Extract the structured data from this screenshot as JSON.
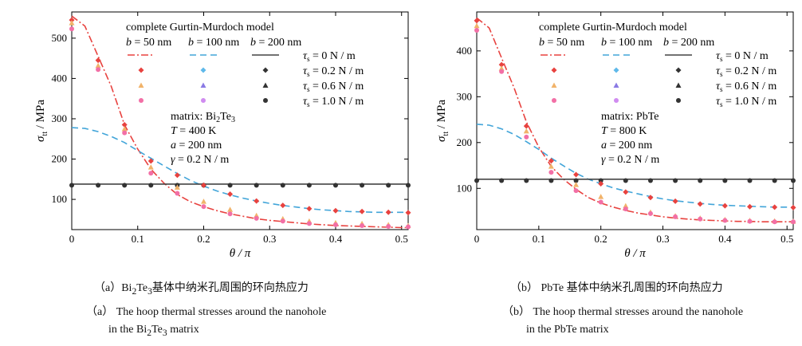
{
  "chart_data": [
    {
      "type": "line",
      "panel": "a",
      "model_title": "complete Gurtin-Murdoch model",
      "xlabel": "θ / π",
      "ylabel_symbol": "σ",
      "ylabel_subscript": "tt",
      "ylabel_unit": " / MPa",
      "xlim": [
        0,
        0.51
      ],
      "ylim": [
        25,
        565
      ],
      "xticks": [
        0,
        0.1,
        0.2,
        0.3,
        0.4,
        0.5
      ],
      "xtick_labels": [
        "0",
        "0.1",
        "0.2",
        "0.3",
        "0.4",
        "0.5"
      ],
      "yticks": [
        100,
        200,
        300,
        400,
        500
      ],
      "ytick_labels": [
        "100",
        "200",
        "300",
        "400",
        "500"
      ],
      "info": [
        "matrix: Bi₂Te₃",
        "T = 400 K",
        "a = 200 nm",
        "γ = 0.2 N / m"
      ],
      "legend_line_labels": [
        "b = 50 nm",
        "b = 100 nm",
        "b = 200 nm"
      ],
      "legend_marker_labels": [
        "τs = 0 N / m",
        "τs = 0.2 N / m",
        "τs = 0.6 N / m",
        "τs = 1.0 N / m"
      ],
      "x_markers": [
        0,
        0.04,
        0.08,
        0.12,
        0.16,
        0.2,
        0.24,
        0.28,
        0.32,
        0.36,
        0.4,
        0.44,
        0.48,
        0.51
      ],
      "lines": [
        {
          "x": [
            0,
            0.02,
            0.04,
            0.06,
            0.08,
            0.1,
            0.12,
            0.14,
            0.16,
            0.18,
            0.2,
            0.22,
            0.24,
            0.26,
            0.28,
            0.3,
            0.32,
            0.34,
            0.36,
            0.38,
            0.4,
            0.42,
            0.44,
            0.46,
            0.48,
            0.5,
            0.51
          ],
          "y": [
            555,
            530,
            455,
            380,
            285,
            225,
            175,
            140,
            112,
            94,
            82,
            72,
            64,
            58,
            52,
            48,
            45,
            42,
            39,
            37,
            35,
            34,
            33,
            32,
            31,
            30,
            30
          ]
        },
        {
          "x": [
            0,
            0.02,
            0.04,
            0.06,
            0.08,
            0.1,
            0.12,
            0.14,
            0.16,
            0.18,
            0.2,
            0.22,
            0.24,
            0.26,
            0.28,
            0.3,
            0.32,
            0.34,
            0.36,
            0.38,
            0.4,
            0.42,
            0.44,
            0.46,
            0.48,
            0.5,
            0.51
          ],
          "y": [
            278,
            276,
            268,
            256,
            241,
            221,
            202,
            183,
            164,
            147,
            133,
            121,
            111,
            103,
            96,
            90,
            85,
            81,
            77,
            74,
            72,
            70,
            69,
            68,
            68,
            68,
            68
          ]
        },
        {
          "x": [
            0,
            0.51
          ],
          "y": [
            138,
            138
          ]
        }
      ],
      "marker_series": [
        {
          "y": [
            135,
            135,
            135,
            135,
            135,
            135,
            135,
            135,
            135,
            135,
            135,
            135,
            135,
            135
          ]
        },
        {
          "y": [
            545,
            445,
            285,
            195,
            160,
            135,
            113,
            96,
            85,
            77,
            72,
            70,
            68,
            67
          ]
        },
        {
          "y": [
            538,
            432,
            275,
            180,
            130,
            95,
            75,
            60,
            52,
            46,
            42,
            40,
            37,
            35
          ]
        },
        {
          "y": [
            523,
            422,
            265,
            165,
            115,
            82,
            64,
            53,
            46,
            40,
            37,
            35,
            33,
            32
          ]
        }
      ],
      "colors": {
        "b50": "#e8423f",
        "b100": "#42a5d9",
        "b200": "#444444",
        "tau0": "#333333",
        "tau02": "#5fb9ea",
        "tau06": "#8a7ae4",
        "tau10": "#d08cf0",
        "red_dark": "#e8423f",
        "orange": "#f1b36a",
        "pink": "#f26fa6"
      }
    },
    {
      "type": "line",
      "panel": "b",
      "model_title": "complete Gurtin-Murdoch model",
      "xlabel": "θ / π",
      "ylabel_symbol": "σ",
      "ylabel_subscript": "tt",
      "ylabel_unit": " / MPa",
      "xlim": [
        0,
        0.51
      ],
      "ylim": [
        10,
        485
      ],
      "xticks": [
        0,
        0.1,
        0.2,
        0.3,
        0.4,
        0.5
      ],
      "xtick_labels": [
        "0",
        "0.1",
        "0.2",
        "0.3",
        "0.4",
        "0.5"
      ],
      "yticks": [
        100,
        200,
        300,
        400
      ],
      "ytick_labels": [
        "100",
        "200",
        "300",
        "400"
      ],
      "info": [
        "matrix: PbTe",
        "T = 800 K",
        "a = 200 nm",
        "γ = 0.2 N / m"
      ],
      "legend_line_labels": [
        "b = 50 nm",
        "b = 100 nm",
        "b = 200 nm"
      ],
      "legend_marker_labels": [
        "τs = 0 N / m",
        "τs = 0.2 N / m",
        "τs = 0.6 N / m",
        "τs = 1.0 N / m"
      ],
      "x_markers": [
        0,
        0.04,
        0.08,
        0.12,
        0.16,
        0.2,
        0.24,
        0.28,
        0.32,
        0.36,
        0.4,
        0.44,
        0.48,
        0.51
      ],
      "lines": [
        {
          "x": [
            0,
            0.02,
            0.04,
            0.06,
            0.08,
            0.1,
            0.12,
            0.14,
            0.16,
            0.18,
            0.2,
            0.22,
            0.24,
            0.26,
            0.28,
            0.3,
            0.32,
            0.34,
            0.36,
            0.38,
            0.4,
            0.42,
            0.44,
            0.46,
            0.48,
            0.5,
            0.51
          ],
          "y": [
            472,
            450,
            385,
            320,
            245,
            190,
            148,
            120,
            98,
            80,
            68,
            59,
            52,
            46,
            42,
            38,
            35,
            33,
            31,
            30,
            29,
            28,
            28,
            27,
            27,
            27,
            27
          ]
        },
        {
          "x": [
            0,
            0.02,
            0.04,
            0.06,
            0.08,
            0.1,
            0.12,
            0.14,
            0.16,
            0.18,
            0.2,
            0.22,
            0.24,
            0.26,
            0.28,
            0.3,
            0.32,
            0.34,
            0.36,
            0.38,
            0.4,
            0.42,
            0.44,
            0.46,
            0.48,
            0.5,
            0.51
          ],
          "y": [
            240,
            238,
            230,
            218,
            202,
            185,
            166,
            149,
            133,
            120,
            110,
            101,
            94,
            88,
            82,
            77,
            73,
            70,
            67,
            65,
            63,
            62,
            61,
            60,
            59,
            59,
            59
          ]
        },
        {
          "x": [
            0,
            0.51
          ],
          "y": [
            120,
            120
          ]
        }
      ],
      "marker_series": [
        {
          "y": [
            117,
            117,
            117,
            117,
            117,
            117,
            117,
            117,
            117,
            117,
            117,
            117,
            117,
            117
          ]
        },
        {
          "y": [
            466,
            370,
            236,
            160,
            130,
            110,
            92,
            80,
            72,
            66,
            62,
            60,
            59,
            58
          ]
        },
        {
          "y": [
            455,
            362,
            225,
            148,
            108,
            82,
            62,
            48,
            40,
            35,
            32,
            30,
            29,
            28
          ]
        },
        {
          "y": [
            445,
            355,
            212,
            135,
            95,
            70,
            55,
            45,
            38,
            33,
            30,
            28,
            27,
            27
          ]
        }
      ],
      "colors": {
        "b50": "#e8423f",
        "b100": "#42a5d9",
        "b200": "#444444",
        "tau0": "#333333",
        "tau02": "#5fb9ea",
        "tau06": "#8a7ae4",
        "tau10": "#d08cf0",
        "red_dark": "#e8423f",
        "orange": "#f1b36a",
        "pink": "#f26fa6"
      }
    }
  ],
  "captions": {
    "a_cn_prefix": "（a）",
    "a_cn_mat_base": "Bi",
    "a_cn_sub1": "2",
    "a_cn_mat_mid": "Te",
    "a_cn_sub2": "3",
    "a_cn_rest": "基体中纳米孔周围的环向热应力",
    "a_en_line1": "（a） The hoop thermal stresses around the nanohole",
    "a_en_line2_pre": "in the Bi",
    "a_en_sub1": "2",
    "a_en_mid": "Te",
    "a_en_sub2": "3",
    "a_en_post": " matrix",
    "b_cn": "（b） PbTe 基体中纳米孔周围的环向热应力",
    "b_en_line1": "（b） The hoop thermal stresses around the nanohole",
    "b_en_line2": "in the PbTe matrix"
  }
}
